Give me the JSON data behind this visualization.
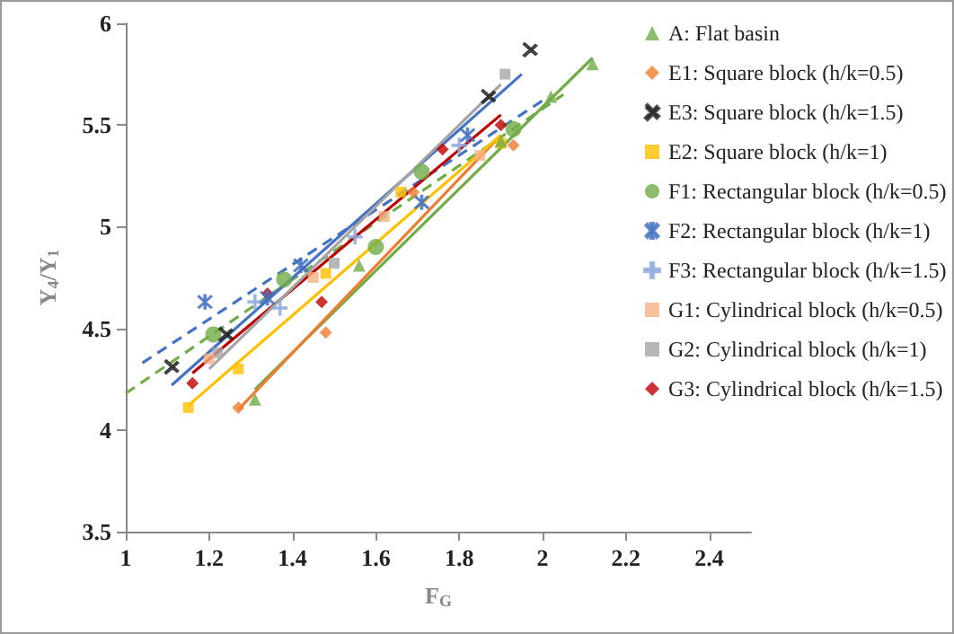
{
  "chart_data": {
    "type": "scatter",
    "xlabel": "F$_{G}$",
    "ylabel": "Y$_{4}$/Y$_{1}$",
    "xlim": [
      1,
      2.5
    ],
    "xticks": [
      1,
      1.2,
      1.4,
      1.6,
      1.8,
      2,
      2.2,
      2.4
    ],
    "ylim": [
      3.5,
      6
    ],
    "yticks": [
      3.5,
      4,
      4.5,
      5,
      5.5,
      6
    ],
    "grid": false,
    "legend": "right",
    "series": [
      {
        "name": "A: Flat basin",
        "color": "#70ad47",
        "marker": "triangle",
        "x": [
          1.31,
          1.56,
          1.9,
          2.02,
          2.12
        ],
        "values": [
          4.15,
          4.81,
          5.42,
          5.64,
          5.8
        ]
      },
      {
        "name": "E1: Square block (h/k=0.5)",
        "color": "#ed7d31",
        "marker": "diamond",
        "x": [
          1.27,
          1.48,
          1.69,
          1.93
        ],
        "values": [
          4.11,
          4.48,
          5.17,
          5.4
        ]
      },
      {
        "name": "E3: Square block (h/k=1.5)",
        "color": "#222222",
        "marker": "x",
        "x": [
          1.11,
          1.24,
          1.87,
          1.97
        ],
        "values": [
          4.31,
          4.47,
          5.64,
          5.87
        ]
      },
      {
        "name": "E2: Square block (h/k=1)",
        "color": "#ffc000",
        "marker": "square",
        "x": [
          1.15,
          1.27,
          1.48,
          1.66,
          1.9
        ],
        "values": [
          4.11,
          4.3,
          4.77,
          5.17,
          5.41
        ]
      },
      {
        "name": "F1: Rectangular block (h/k=0.5)",
        "color": "#70ad47",
        "marker": "circle",
        "x": [
          1.21,
          1.38,
          1.6,
          1.71,
          1.93
        ],
        "values": [
          4.47,
          4.74,
          4.9,
          5.27,
          5.48
        ]
      },
      {
        "name": "F2: Rectangular block (h/k=1)",
        "color": "#4472c4",
        "marker": "cross",
        "x": [
          1.19,
          1.34,
          1.42,
          1.71,
          1.82
        ],
        "values": [
          4.63,
          4.65,
          4.81,
          5.12,
          5.45
        ]
      },
      {
        "name": "F3: Rectangular block (h/k=1.5)",
        "color": "#8faadc",
        "marker": "plus",
        "x": [
          1.31,
          1.37,
          1.55,
          1.8
        ],
        "values": [
          4.63,
          4.6,
          4.95,
          5.4
        ]
      },
      {
        "name": "G1: Cylindrical block (h/k=0.5)",
        "color": "#f4b183",
        "marker": "square",
        "x": [
          1.2,
          1.45,
          1.62,
          1.85
        ],
        "values": [
          4.35,
          4.75,
          5.05,
          5.35
        ]
      },
      {
        "name": "G2: Cylindrical block (h/k=1)",
        "color": "#a5a5a5",
        "marker": "square",
        "x": [
          1.22,
          1.5,
          1.91
        ],
        "values": [
          4.38,
          4.82,
          5.75
        ]
      },
      {
        "name": "G3: Cylindrical block (h/k=1.5)",
        "color": "#c00000",
        "marker": "diamond",
        "x": [
          1.16,
          1.34,
          1.47,
          1.76,
          1.9
        ],
        "values": [
          4.23,
          4.67,
          4.63,
          5.38,
          5.5
        ]
      },
      {
        "type": "line",
        "color": "#70ad47",
        "marker": "none",
        "line_style": "solid",
        "x": [
          1.31,
          2.12
        ],
        "values": [
          4.2,
          5.83
        ]
      },
      {
        "type": "line",
        "color": "#70ad47",
        "marker": "none",
        "line_style": "dashed",
        "x": [
          1,
          2.05
        ],
        "values": [
          4.18,
          5.65
        ]
      },
      {
        "type": "line",
        "color": "#4472c4",
        "marker": "none",
        "line_style": "dashed",
        "x": [
          1.04,
          2
        ],
        "values": [
          4.33,
          5.62
        ]
      },
      {
        "type": "line",
        "color": "#4472c4",
        "marker": "none",
        "line_style": "solid",
        "x": [
          1.11,
          1.95
        ],
        "values": [
          4.22,
          5.75
        ]
      },
      {
        "type": "line",
        "color": "#ed7d31",
        "marker": "none",
        "line_style": "solid",
        "x": [
          1.27,
          1.9
        ],
        "values": [
          4.1,
          5.45
        ]
      },
      {
        "type": "line",
        "color": "#ffc000",
        "marker": "none",
        "line_style": "solid",
        "x": [
          1.15,
          1.9
        ],
        "values": [
          4.12,
          5.45
        ]
      },
      {
        "type": "line",
        "color": "#c00000",
        "marker": "none",
        "line_style": "solid",
        "x": [
          1.16,
          1.9
        ],
        "values": [
          4.28,
          5.55
        ]
      },
      {
        "type": "line",
        "color": "#a5a5a5",
        "marker": "none",
        "line_style": "solid",
        "x": [
          1.2,
          1.9
        ],
        "values": [
          4.3,
          5.7
        ]
      }
    ]
  }
}
